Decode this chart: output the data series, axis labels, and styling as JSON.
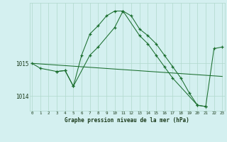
{
  "title": "Graphe pression niveau de la mer (hPa)",
  "background_color": "#d4f0f0",
  "grid_color": "#b0d8cc",
  "line_color": "#1a6e2e",
  "x_labels": [
    "0",
    "1",
    "2",
    "3",
    "4",
    "5",
    "6",
    "7",
    "8",
    "9",
    "10",
    "11",
    "12",
    "13",
    "14",
    "15",
    "16",
    "17",
    "18",
    "19",
    "20",
    "21",
    "22",
    "23"
  ],
  "yticks": [
    1014,
    1015
  ],
  "ylim": [
    1013.55,
    1016.85
  ],
  "xlim": [
    -0.3,
    23.3
  ],
  "series1_x": [
    0,
    1,
    3,
    4,
    5,
    7,
    8,
    10,
    11,
    13,
    14,
    15,
    16,
    17,
    20,
    21
  ],
  "series1_y": [
    1015.0,
    1014.85,
    1014.75,
    1014.78,
    1014.3,
    1015.25,
    1015.5,
    1016.1,
    1016.6,
    1015.85,
    1015.6,
    1015.25,
    1014.9,
    1014.55,
    1013.72,
    1013.68
  ],
  "series2_x": [
    3,
    4,
    5,
    6,
    7,
    8,
    9,
    10,
    11,
    12,
    13,
    14,
    15,
    16,
    17,
    18,
    19,
    20,
    21,
    22,
    23
  ],
  "series2_y": [
    1014.75,
    1014.78,
    1014.3,
    1015.25,
    1015.9,
    1016.15,
    1016.45,
    1016.6,
    1016.6,
    1016.45,
    1016.05,
    1015.85,
    1015.6,
    1015.25,
    1014.9,
    1014.55,
    1014.1,
    1013.72,
    1013.68,
    1015.45,
    1015.5
  ],
  "series3_x": [
    0,
    23
  ],
  "series3_y": [
    1015.0,
    1014.6
  ]
}
